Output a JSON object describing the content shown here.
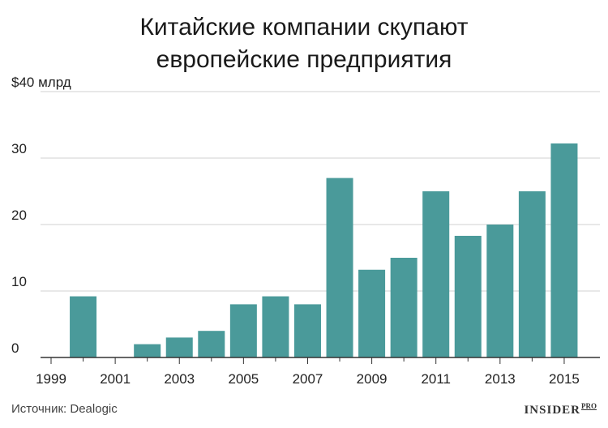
{
  "title_line1": "Китайские компании скупают",
  "title_line2": "европейские предприятия",
  "source": "Источник: Dealogic",
  "logo": {
    "main": "INSIDER",
    "sup": "PRO"
  },
  "colors": {
    "bar": "#4a9a9a",
    "grid": "#d0d0d0",
    "axis": "#333333"
  },
  "chart_data": {
    "type": "bar",
    "years": [
      1999,
      2000,
      2001,
      2002,
      2003,
      2004,
      2005,
      2006,
      2007,
      2008,
      2009,
      2010,
      2011,
      2012,
      2013,
      2014,
      2015
    ],
    "values": [
      0,
      9.2,
      0,
      2.0,
      3.0,
      4.0,
      8.0,
      9.2,
      8.0,
      27.0,
      13.2,
      15.0,
      25.0,
      18.3,
      20.0,
      25.0,
      32.2
    ],
    "x_tick_labels": [
      "1999",
      "2001",
      "2003",
      "2005",
      "2007",
      "2009",
      "2011",
      "2013",
      "2015"
    ],
    "y_ticks": [
      0,
      10,
      20,
      30,
      40
    ],
    "y_tick_labels": [
      "0",
      "10",
      "20",
      "30",
      "$40 млрд"
    ],
    "ylim": [
      0,
      40
    ],
    "grid": true
  }
}
